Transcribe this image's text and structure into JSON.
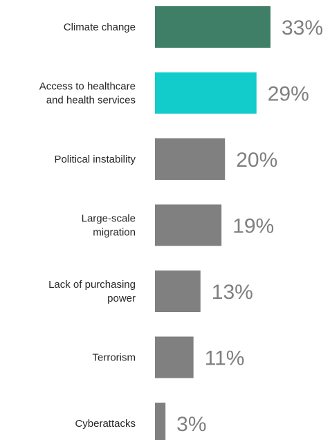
{
  "chart_data": {
    "type": "bar",
    "orientation": "horizontal",
    "categories": [
      [
        "Climate change"
      ],
      [
        "Access to healthcare",
        "and health services"
      ],
      [
        "Political instability"
      ],
      [
        "Large-scale",
        "migration"
      ],
      [
        "Lack of purchasing",
        "power"
      ],
      [
        "Terrorism"
      ],
      [
        "Cyberattacks"
      ]
    ],
    "values": [
      33,
      29,
      20,
      19,
      13,
      11,
      3
    ],
    "value_labels": [
      "33%",
      "29%",
      "20%",
      "19%",
      "13%",
      "11%",
      "3%"
    ],
    "bar_colors": [
      "#3f7f67",
      "#12cccb",
      "#808080",
      "#808080",
      "#808080",
      "#808080",
      "#808080"
    ],
    "value_label_color": "#7f7f7f",
    "category_label_color": "#262626",
    "xlim": [
      0,
      33
    ],
    "axes_visible": false,
    "grid": false,
    "legend": "none"
  }
}
